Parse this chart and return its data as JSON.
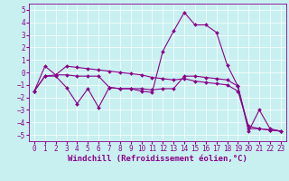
{
  "x": [
    0,
    1,
    2,
    3,
    4,
    5,
    6,
    7,
    8,
    9,
    10,
    11,
    12,
    13,
    14,
    15,
    16,
    17,
    18,
    19,
    20,
    21,
    22,
    23
  ],
  "s1": [
    -1.5,
    -0.3,
    -0.3,
    -1.2,
    -2.5,
    -1.3,
    -2.8,
    -1.2,
    -1.3,
    -1.3,
    -1.5,
    -1.6,
    1.7,
    3.3,
    4.8,
    3.8,
    3.8,
    3.2,
    0.6,
    -1.1,
    -4.7,
    -3.0,
    -4.5,
    -4.7
  ],
  "s2": [
    -1.5,
    0.5,
    -0.2,
    -0.2,
    -0.3,
    -0.3,
    -0.3,
    -1.2,
    -1.3,
    -1.3,
    -1.3,
    -1.4,
    -1.3,
    -1.3,
    -0.3,
    -0.3,
    -0.4,
    -0.5,
    -0.6,
    -1.1,
    -4.5,
    -4.5,
    -4.6,
    -4.7
  ],
  "s3": [
    -1.5,
    -0.3,
    -0.2,
    0.5,
    0.4,
    0.3,
    0.2,
    0.1,
    0.0,
    -0.1,
    -0.2,
    -0.4,
    -0.5,
    -0.6,
    -0.5,
    -0.7,
    -0.8,
    -0.9,
    -1.0,
    -1.5,
    -4.3,
    -4.5,
    -4.6,
    -4.7
  ],
  "xlabel": "Windchill (Refroidissement éolien,°C)",
  "ylim": [
    -5.5,
    5.5
  ],
  "xlim": [
    -0.5,
    23.5
  ],
  "yticks": [
    -5,
    -4,
    -3,
    -2,
    -1,
    0,
    1,
    2,
    3,
    4,
    5
  ],
  "xticks": [
    0,
    1,
    2,
    3,
    4,
    5,
    6,
    7,
    8,
    9,
    10,
    11,
    12,
    13,
    14,
    15,
    16,
    17,
    18,
    19,
    20,
    21,
    22,
    23
  ],
  "bg_color": "#c8f0f0",
  "grid_color": "#ffffff",
  "line_color": "#8B008B",
  "marker": "D",
  "marker_size": 2,
  "linewidth": 0.8,
  "xlabel_fontsize": 6.5,
  "tick_fontsize": 5.5
}
